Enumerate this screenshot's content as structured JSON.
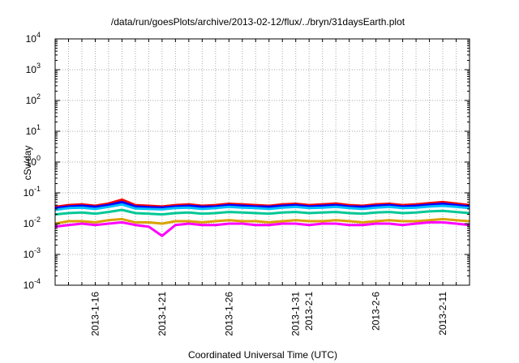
{
  "chart_data": {
    "type": "line",
    "title": "/data/run/goesPlots/archive/2013-02-12/flux/../bryn/31daysEarth.plot",
    "xlabel": "Coordinated Universal Time (UTC)",
    "ylabel": "cSv/day",
    "yscale": "log",
    "ylim": [
      0.0001,
      10000
    ],
    "xlim": [
      "2013-01-13",
      "2013-02-13"
    ],
    "grid": true,
    "y_ticks": [
      {
        "base": "10",
        "exp": "-4"
      },
      {
        "base": "10",
        "exp": "-3"
      },
      {
        "base": "10",
        "exp": "-2"
      },
      {
        "base": "10",
        "exp": "-1"
      },
      {
        "base": "10",
        "exp": "0"
      },
      {
        "base": "10",
        "exp": "1"
      },
      {
        "base": "10",
        "exp": "2"
      },
      {
        "base": "10",
        "exp": "3"
      },
      {
        "base": "10",
        "exp": "4"
      }
    ],
    "x_ticks": [
      {
        "date": "2013-01-16",
        "label": "2013-1-16"
      },
      {
        "date": "2013-01-21",
        "label": "2013-1-21"
      },
      {
        "date": "2013-01-26",
        "label": "2013-1-26"
      },
      {
        "date": "2013-01-31",
        "label": "2013-1-31"
      },
      {
        "date": "2013-02-01",
        "label": "2013-2-1"
      },
      {
        "date": "2013-02-06",
        "label": "2013-2-6"
      },
      {
        "date": "2013-02-11",
        "label": "2013-2-11"
      }
    ],
    "x": [
      "2013-01-13",
      "2013-01-14",
      "2013-01-15",
      "2013-01-16",
      "2013-01-17",
      "2013-01-18",
      "2013-01-19",
      "2013-01-20",
      "2013-01-21",
      "2013-01-22",
      "2013-01-23",
      "2013-01-24",
      "2013-01-25",
      "2013-01-26",
      "2013-01-27",
      "2013-01-28",
      "2013-01-29",
      "2013-01-30",
      "2013-01-31",
      "2013-02-01",
      "2013-02-02",
      "2013-02-03",
      "2013-02-04",
      "2013-02-05",
      "2013-02-06",
      "2013-02-07",
      "2013-02-08",
      "2013-02-09",
      "2013-02-10",
      "2013-02-11",
      "2013-02-12",
      "2013-02-13"
    ],
    "series": [
      {
        "color": "#ff0000",
        "values": [
          0.035,
          0.04,
          0.042,
          0.038,
          0.045,
          0.06,
          0.04,
          0.038,
          0.036,
          0.04,
          0.042,
          0.038,
          0.04,
          0.044,
          0.042,
          0.04,
          0.038,
          0.042,
          0.044,
          0.04,
          0.042,
          0.045,
          0.04,
          0.038,
          0.042,
          0.044,
          0.04,
          0.042,
          0.046,
          0.05,
          0.045,
          0.04
        ]
      },
      {
        "color": "#0000ff",
        "values": [
          0.032,
          0.036,
          0.038,
          0.035,
          0.04,
          0.05,
          0.036,
          0.034,
          0.033,
          0.036,
          0.038,
          0.035,
          0.036,
          0.04,
          0.038,
          0.036,
          0.035,
          0.038,
          0.04,
          0.036,
          0.038,
          0.04,
          0.036,
          0.035,
          0.038,
          0.04,
          0.036,
          0.038,
          0.041,
          0.044,
          0.04,
          0.036
        ]
      },
      {
        "color": "#00bfff",
        "values": [
          0.028,
          0.032,
          0.033,
          0.03,
          0.035,
          0.042,
          0.031,
          0.03,
          0.029,
          0.032,
          0.033,
          0.03,
          0.032,
          0.035,
          0.033,
          0.032,
          0.03,
          0.033,
          0.035,
          0.032,
          0.033,
          0.035,
          0.032,
          0.03,
          0.033,
          0.035,
          0.032,
          0.033,
          0.036,
          0.038,
          0.035,
          0.032
        ]
      },
      {
        "color": "#00c896",
        "values": [
          0.02,
          0.022,
          0.023,
          0.021,
          0.024,
          0.028,
          0.022,
          0.021,
          0.02,
          0.022,
          0.023,
          0.021,
          0.022,
          0.024,
          0.023,
          0.022,
          0.021,
          0.023,
          0.024,
          0.022,
          0.023,
          0.024,
          0.022,
          0.021,
          0.023,
          0.024,
          0.022,
          0.023,
          0.025,
          0.026,
          0.024,
          0.022
        ]
      },
      {
        "color": "#d9a300",
        "values": [
          0.01,
          0.012,
          0.012,
          0.011,
          0.013,
          0.014,
          0.011,
          0.011,
          0.01,
          0.012,
          0.012,
          0.011,
          0.012,
          0.013,
          0.012,
          0.012,
          0.011,
          0.012,
          0.013,
          0.012,
          0.012,
          0.013,
          0.012,
          0.011,
          0.012,
          0.013,
          0.012,
          0.012,
          0.013,
          0.014,
          0.013,
          0.012
        ]
      },
      {
        "color": "#ff00ff",
        "values": [
          0.008,
          0.009,
          0.01,
          0.009,
          0.01,
          0.011,
          0.009,
          0.008,
          0.004,
          0.009,
          0.01,
          0.009,
          0.009,
          0.01,
          0.01,
          0.009,
          0.009,
          0.01,
          0.01,
          0.009,
          0.01,
          0.01,
          0.009,
          0.009,
          0.01,
          0.01,
          0.009,
          0.01,
          0.011,
          0.011,
          0.01,
          0.009
        ]
      }
    ]
  }
}
